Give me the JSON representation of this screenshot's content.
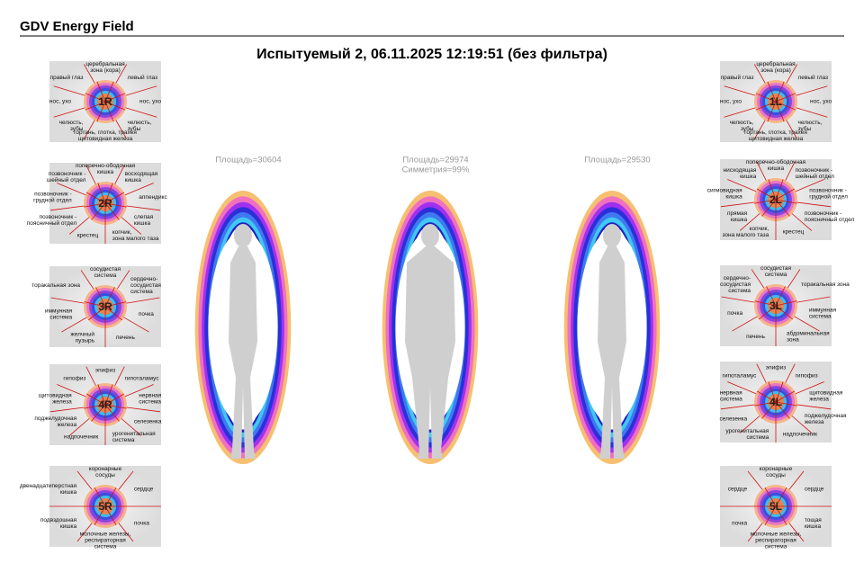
{
  "header": {
    "title": "GDV Energy Field"
  },
  "subtitle": "Испытуемый 2, 06.11.2025 12:19:51 (без фильтра)",
  "fingers": [
    {
      "label": "1R",
      "sectors": [
        [
          "церебральная",
          "зона (кора)"
        ],
        [
          "левый глаз"
        ],
        [
          "нос, ухо"
        ],
        [
          "челюсть,",
          "зубы"
        ],
        [
          "гортань, глотка, трахея",
          "щитовидная железа"
        ],
        [
          "челюсть,",
          "зубы"
        ],
        [
          "нос, ухо"
        ],
        [
          "правый глаз"
        ]
      ]
    },
    {
      "label": "2R",
      "sectors": [
        [
          "поперечно-ободочная",
          "кишка"
        ],
        [
          "восходящая",
          "кишка"
        ],
        [
          "аппендикс"
        ],
        [
          "слепая",
          "кишка"
        ],
        [
          "копчик,",
          "зона малого таза"
        ],
        [
          "крестец"
        ],
        [
          "позвоночник -",
          "поясничный отдел"
        ],
        [
          "позвоночник -",
          "грудной отдел"
        ],
        [
          "позвоночник -",
          "шейный отдел"
        ]
      ]
    },
    {
      "label": "3R",
      "sectors": [
        [
          "сосудистая",
          "система"
        ],
        [
          "сердечно-",
          "сосудистая",
          "система"
        ],
        [
          "почка"
        ],
        [
          "печень"
        ],
        [
          "желчный",
          "пузырь"
        ],
        [
          "иммунная",
          "система"
        ],
        [
          "торакальная зона"
        ]
      ]
    },
    {
      "label": "4R",
      "sectors": [
        [
          "эпифиз"
        ],
        [
          "гипоталамус"
        ],
        [
          "нервная",
          "система"
        ],
        [
          "селезенка"
        ],
        [
          "урогенитальная",
          "система"
        ],
        [
          "надпочечник"
        ],
        [
          "поджелудочная",
          "железа"
        ],
        [
          "щитовидная",
          "железа"
        ],
        [
          "гипофиз"
        ]
      ]
    },
    {
      "label": "5R",
      "sectors": [
        [
          "коронарные",
          "сосуды"
        ],
        [
          "сердце"
        ],
        [
          "почка"
        ],
        [
          "молочные железы,",
          "респираторная",
          "система"
        ],
        [
          "подвздошная",
          "кишка"
        ],
        [
          "двенадцатиперстная",
          "кишка"
        ]
      ]
    },
    {
      "label": "1L",
      "sectors": [
        [
          "церебральная",
          "зона (кора)"
        ],
        [
          "левый глаз"
        ],
        [
          "нос, ухо"
        ],
        [
          "челюсть,",
          "зубы"
        ],
        [
          "гортань, глотка, трахея",
          "щитовидная железа"
        ],
        [
          "челюсть,",
          "зубы"
        ],
        [
          "нос, ухо"
        ],
        [
          "правый глаз"
        ]
      ]
    },
    {
      "label": "2L",
      "sectors": [
        [
          "поперечно-ободочная",
          "кишка"
        ],
        [
          "позвоночник -",
          "шейный отдел"
        ],
        [
          "позвоночник -",
          "грудной отдел"
        ],
        [
          "позвоночник -",
          "поясничный отдел"
        ],
        [
          "крестец"
        ],
        [
          "копчик,",
          "зона малого таза"
        ],
        [
          "прямая",
          "кишка"
        ],
        [
          "сигмовидная",
          "кишка"
        ],
        [
          "нисходящая",
          "кишка"
        ]
      ]
    },
    {
      "label": "3L",
      "sectors": [
        [
          "сосудистая",
          "система"
        ],
        [
          "торакальная зона"
        ],
        [
          "иммунная",
          "система"
        ],
        [
          "абдоминальная",
          "зона"
        ],
        [
          "печень"
        ],
        [
          "почка"
        ],
        [
          "сердечно-",
          "сосудистая",
          "система"
        ]
      ]
    },
    {
      "label": "4L",
      "sectors": [
        [
          "эпифиз"
        ],
        [
          "гипофиз"
        ],
        [
          "щитовидная",
          "железа"
        ],
        [
          "поджелудочная",
          "железа"
        ],
        [
          "надпочечник"
        ],
        [
          "урогенитальная",
          "система"
        ],
        [
          "селезенка"
        ],
        [
          "нервная",
          "система"
        ],
        [
          "гипоталамус"
        ]
      ]
    },
    {
      "label": "5L",
      "sectors": [
        [
          "коронарные",
          "сосуды"
        ],
        [
          "сердце"
        ],
        [
          "тощая",
          "кишка"
        ],
        [
          "молочные железы,",
          "респираторная",
          "система"
        ],
        [
          "почка"
        ],
        [
          "сердце"
        ]
      ]
    }
  ],
  "auras": [
    {
      "lines": [
        "Площадь=30604"
      ]
    },
    {
      "lines": [
        "Площадь=29974",
        "Симметрия=99%"
      ]
    },
    {
      "lines": [
        "Площадь=29530"
      ]
    }
  ]
}
